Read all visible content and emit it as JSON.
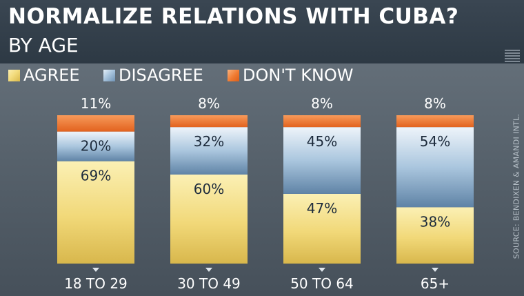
{
  "title": "NORMALIZE RELATIONS WITH CUBA?",
  "subtitle": "BY AGE",
  "source": "SOURCE: BENDIXEN & AMANDI INTL.",
  "colors": {
    "agree": "#f3dc7e",
    "disagree": "#a9c5de",
    "dont_know": "#f07a30"
  },
  "chart_data": {
    "type": "bar",
    "stacked": true,
    "normalized": true,
    "categories": [
      "18 TO 29",
      "30 TO 49",
      "50 TO 64",
      "65+"
    ],
    "series": [
      {
        "name": "AGREE",
        "values": [
          69,
          60,
          47,
          38
        ]
      },
      {
        "name": "DISAGREE",
        "values": [
          20,
          32,
          45,
          54
        ]
      },
      {
        "name": "DON'T KNOW",
        "values": [
          11,
          8,
          8,
          8
        ]
      }
    ],
    "data_labels": {
      "AGREE": [
        "69%",
        "60%",
        "47%",
        "38%"
      ],
      "DISAGREE": [
        "20%",
        "32%",
        "45%",
        "54%"
      ],
      "DON'T KNOW": [
        "11%",
        "8%",
        "8%",
        "8%"
      ]
    },
    "legend": "top-left",
    "grid": false
  }
}
